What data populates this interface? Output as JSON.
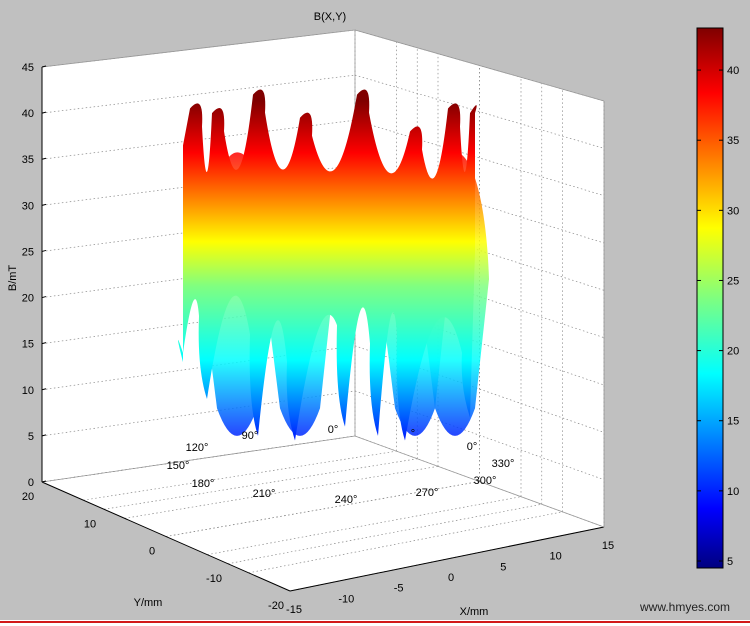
{
  "chart_data": {
    "type": "surface",
    "title": "B(X,Y)",
    "xlabel": "X/mm",
    "ylabel": "Y/mm",
    "zlabel": "B/mT",
    "x_ticks": [
      -15,
      -10,
      -5,
      0,
      5,
      10,
      15
    ],
    "y_ticks": [
      20,
      10,
      0,
      -10,
      -20
    ],
    "z_ticks": [
      0,
      5,
      10,
      15,
      20,
      25,
      30,
      35,
      40,
      45
    ],
    "xlim": [
      -15,
      15
    ],
    "ylim": [
      -20,
      20
    ],
    "zlim": [
      0,
      45
    ],
    "grid": true,
    "angle_annotations": [
      "120°",
      "90°",
      "0°",
      "°",
      "0°",
      "150°",
      "330°",
      "180°",
      "300°",
      "210°",
      "240°",
      "270°"
    ],
    "colorbar": {
      "ticks": [
        5,
        10,
        15,
        20,
        25,
        30,
        35,
        40
      ],
      "range": [
        4.5,
        43
      ],
      "colormap": "jet"
    },
    "surface_profile": {
      "note_free": true,
      "peaks_mT": [
        40.5,
        40,
        42,
        39.5,
        42,
        38,
        40.5,
        40
      ],
      "mid_mT": [
        22,
        26,
        24,
        21,
        25,
        23,
        24,
        22
      ],
      "min_mT": [
        14,
        9,
        5,
        4.5,
        6,
        5,
        4.5,
        7
      ]
    }
  },
  "watermark": "www.hmyes.com",
  "colors": {
    "background": "#c0c0c0",
    "axes_face": "#ffffff",
    "accent_line": "#d21a1a"
  }
}
